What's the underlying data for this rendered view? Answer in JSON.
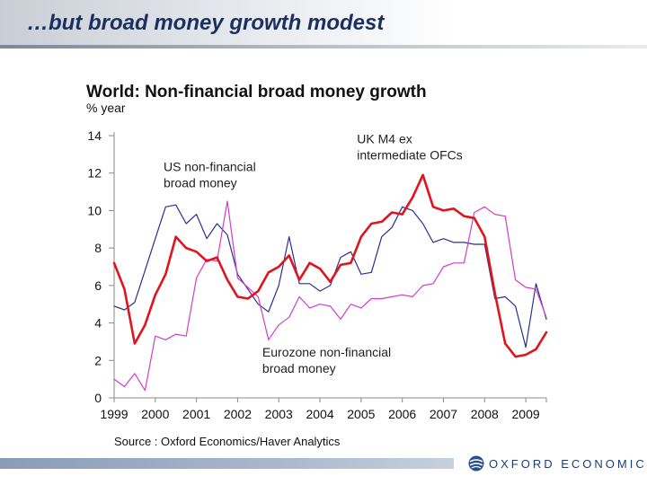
{
  "slide": {
    "title": "…but broad money growth modest",
    "logo_text": "OXFORD ECONOMICS"
  },
  "chart_data": {
    "type": "line",
    "title": "World: Non-financial broad money growth",
    "ylabel": "% year",
    "source": "Source : Oxford Economics/Haver Analytics",
    "ylim": [
      0,
      14
    ],
    "yticks": [
      0,
      2,
      4,
      6,
      8,
      10,
      12,
      14
    ],
    "xlim": [
      1999,
      2009.5
    ],
    "xticks": [
      1999,
      2000,
      2001,
      2002,
      2003,
      2004,
      2005,
      2006,
      2007,
      2008,
      2009
    ],
    "xtick_labels": [
      "1999",
      "2000",
      "2001",
      "2002",
      "2003",
      "2004",
      "2005",
      "2006",
      "2007",
      "2008",
      "2009"
    ],
    "grid": false,
    "series": [
      {
        "name": "US non-financial broad money",
        "color": "#2b2f8f",
        "width": 1.2,
        "x": [
          1999.0,
          1999.25,
          1999.5,
          1999.75,
          2000.0,
          2000.25,
          2000.5,
          2000.75,
          2001.0,
          2001.25,
          2001.5,
          2001.75,
          2002.0,
          2002.25,
          2002.5,
          2002.75,
          2003.0,
          2003.25,
          2003.5,
          2003.75,
          2004.0,
          2004.25,
          2004.5,
          2004.75,
          2005.0,
          2005.25,
          2005.5,
          2005.75,
          2006.0,
          2006.25,
          2006.5,
          2006.75,
          2007.0,
          2007.25,
          2007.5,
          2007.75,
          2008.0,
          2008.25,
          2008.5,
          2008.75,
          2009.0,
          2009.25,
          2009.5
        ],
        "y": [
          4.9,
          4.7,
          5.1,
          6.8,
          8.5,
          10.2,
          10.3,
          9.3,
          9.8,
          8.5,
          9.3,
          8.7,
          6.6,
          5.8,
          5.0,
          4.6,
          6.0,
          8.6,
          6.1,
          6.1,
          5.7,
          6.0,
          7.5,
          7.8,
          6.6,
          6.7,
          8.6,
          9.1,
          10.2,
          10.0,
          9.3,
          8.3,
          8.5,
          8.3,
          8.3,
          8.2,
          8.2,
          5.3,
          5.4,
          4.9,
          2.7,
          6.1,
          4.2
        ]
      },
      {
        "name": "Eurozone non-financial broad money",
        "color": "#d43cc8",
        "width": 1.2,
        "x": [
          1999.0,
          1999.25,
          1999.5,
          1999.75,
          2000.0,
          2000.25,
          2000.5,
          2000.75,
          2001.0,
          2001.25,
          2001.5,
          2001.75,
          2002.0,
          2002.25,
          2002.5,
          2002.75,
          2003.0,
          2003.25,
          2003.5,
          2003.75,
          2004.0,
          2004.25,
          2004.5,
          2004.75,
          2005.0,
          2005.25,
          2005.5,
          2005.75,
          2006.0,
          2006.25,
          2006.5,
          2006.75,
          2007.0,
          2007.25,
          2007.5,
          2007.75,
          2008.0,
          2008.25,
          2008.5,
          2008.75,
          2009.0,
          2009.25,
          2009.5
        ],
        "y": [
          1.0,
          0.6,
          1.3,
          0.4,
          3.3,
          3.1,
          3.4,
          3.3,
          6.4,
          7.4,
          7.3,
          10.5,
          6.4,
          5.9,
          5.4,
          3.1,
          3.9,
          4.3,
          5.4,
          4.8,
          5.0,
          4.9,
          4.2,
          5.0,
          4.8,
          5.3,
          5.3,
          5.4,
          5.5,
          5.4,
          6.0,
          6.1,
          7.0,
          7.2,
          7.2,
          9.9,
          10.2,
          9.8,
          9.7,
          6.3,
          5.9,
          5.8,
          4.3
        ]
      },
      {
        "name": "UK M4 ex intermediate OFCs",
        "color": "#e0141e",
        "width": 2.6,
        "x": [
          1999.0,
          1999.25,
          1999.5,
          1999.75,
          2000.0,
          2000.25,
          2000.5,
          2000.75,
          2001.0,
          2001.25,
          2001.5,
          2001.75,
          2002.0,
          2002.25,
          2002.5,
          2002.75,
          2003.0,
          2003.25,
          2003.5,
          2003.75,
          2004.0,
          2004.25,
          2004.5,
          2004.75,
          2005.0,
          2005.25,
          2005.5,
          2005.75,
          2006.0,
          2006.25,
          2006.5,
          2006.75,
          2007.0,
          2007.25,
          2007.5,
          2007.75,
          2008.0,
          2008.25,
          2008.5,
          2008.75,
          2009.0,
          2009.25,
          2009.5
        ],
        "y": [
          7.2,
          5.8,
          2.9,
          3.9,
          5.5,
          6.6,
          8.6,
          8.0,
          7.8,
          7.3,
          7.5,
          6.3,
          5.4,
          5.3,
          5.7,
          6.7,
          7.0,
          7.6,
          6.3,
          7.2,
          6.9,
          6.2,
          7.1,
          7.2,
          8.6,
          9.3,
          9.4,
          9.9,
          9.8,
          10.7,
          11.9,
          10.2,
          10.0,
          10.1,
          9.7,
          9.6,
          8.6,
          5.6,
          2.9,
          2.2,
          2.3,
          2.6,
          3.5
        ]
      }
    ],
    "annotations": [
      {
        "lines": [
          "US non-financial",
          "broad money"
        ],
        "x": 2000.2,
        "y": 12.1,
        "anchor": "start",
        "color": "#222222"
      },
      {
        "lines": [
          "UK M4 ex",
          "intermediate OFCs"
        ],
        "x": 2004.9,
        "y": 13.6,
        "anchor": "start",
        "color": "#222222"
      },
      {
        "lines": [
          "Eurozone non-financial",
          "broad money"
        ],
        "x": 2002.6,
        "y": 2.2,
        "anchor": "start",
        "color": "#222222"
      }
    ]
  }
}
